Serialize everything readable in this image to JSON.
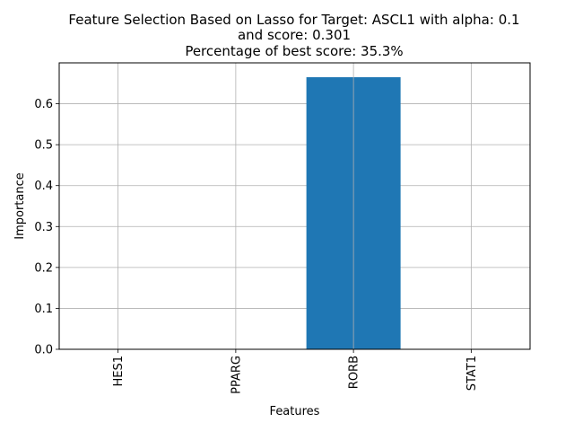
{
  "chart_data": {
    "type": "bar",
    "title_lines": [
      "Feature Selection Based on Lasso for Target: ASCL1 with alpha: 0.1",
      "and score: 0.301",
      "Percentage of best score: 35.3%"
    ],
    "xlabel": "Features",
    "ylabel": "Importance",
    "categories": [
      "HES1",
      "PPARG",
      "RORB",
      "STAT1"
    ],
    "values": [
      0.0,
      0.0,
      0.665,
      0.0
    ],
    "ylim": [
      0,
      0.7
    ],
    "yticks": [
      "0.0",
      "0.1",
      "0.2",
      "0.3",
      "0.4",
      "0.5",
      "0.6"
    ],
    "grid": true,
    "bar_color": "#1f77b4"
  }
}
